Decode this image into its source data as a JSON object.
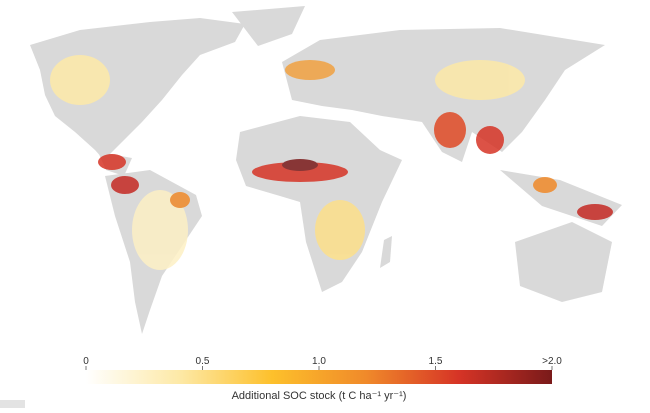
{
  "colorbar": {
    "label": "Additional SOC stock (t C ha⁻¹ yr⁻¹)",
    "range": [
      0,
      2
    ],
    "ticks": [
      0,
      0.5,
      {
        "value": 1,
        "label": "1.0"
      },
      1.5,
      {
        "value": 2,
        "label": ">2.0"
      }
    ],
    "colors": [
      "#ffffff",
      "#fde9a7",
      "#fdc02b",
      "#f08a2a",
      "#d63426",
      "#7a1a1a"
    ]
  }
}
